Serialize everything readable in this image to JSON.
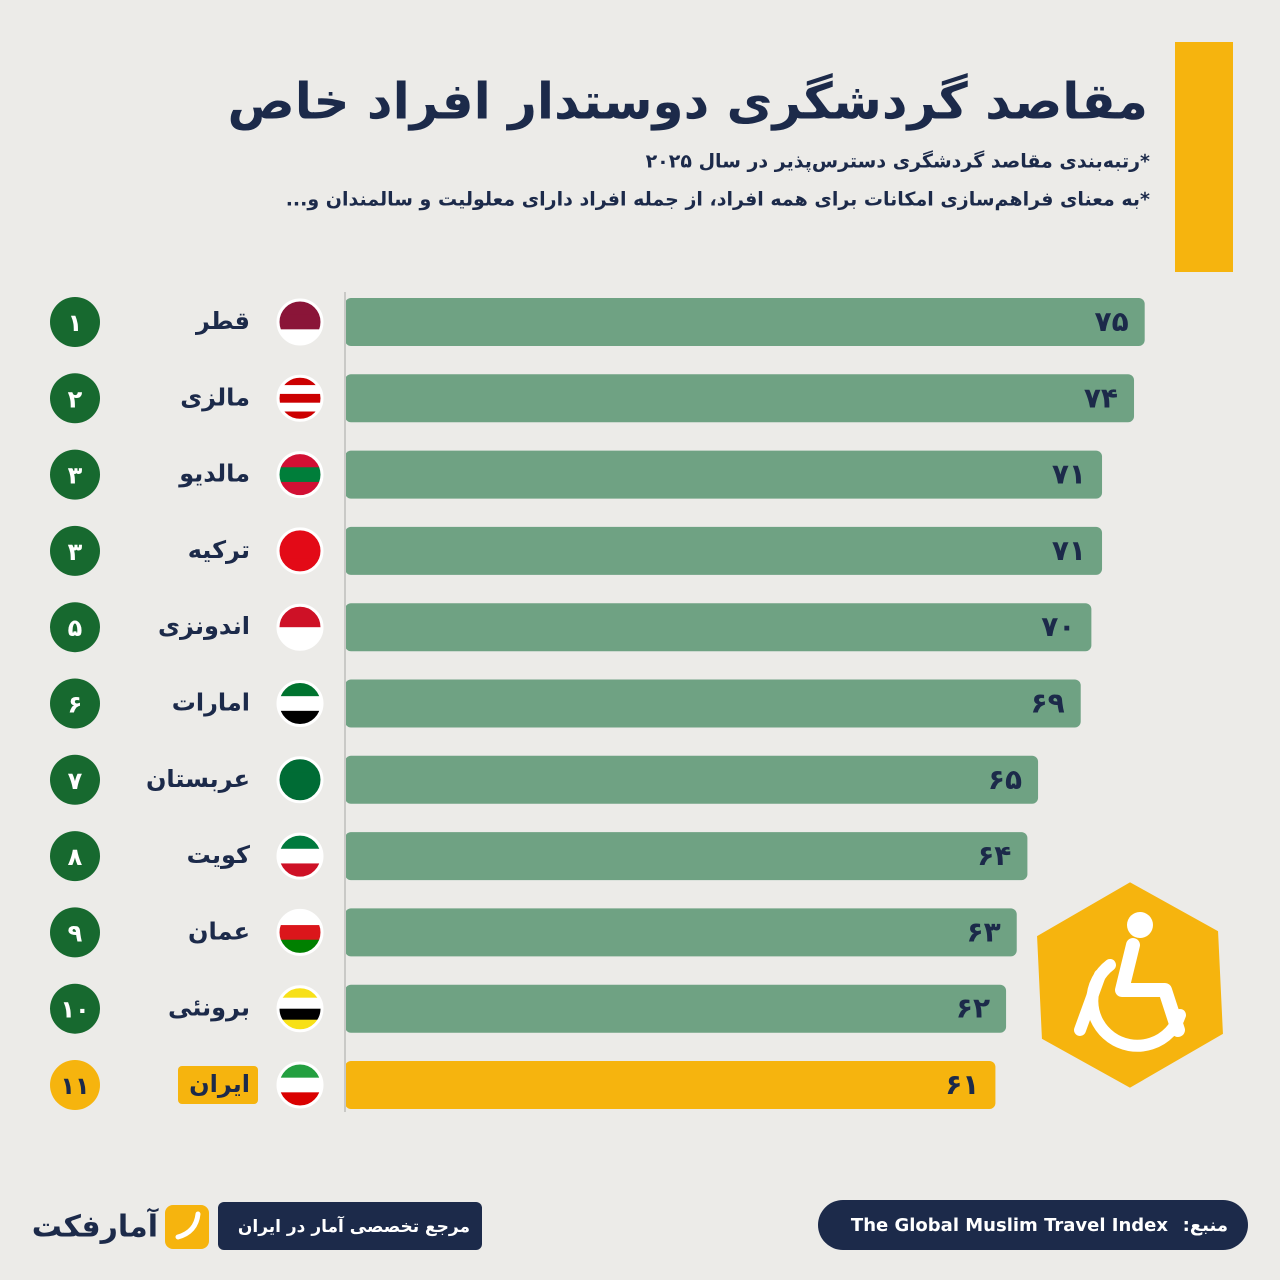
{
  "chart_data": {
    "type": "bar",
    "orientation": "horizontal",
    "title": "مقاصد گردشگری دوستدار افراد خاص",
    "subtitle": [
      "*رتبه‌بندی مقاصد گردشگری دسترس‌پذیر در سال ۲۰۲۵",
      "*به معنای فراهم‌سازی امکانات برای همه افراد، از جمله افراد دارای معلولیت و سالمندان و..."
    ],
    "ranks": [
      "۱",
      "۲",
      "۳",
      "۳",
      "۵",
      "۶",
      "۷",
      "۸",
      "۹",
      "۱۰",
      "۱۱"
    ],
    "categories": [
      "قطر",
      "مالزی",
      "مالدیو",
      "ترکیه",
      "اندونزی",
      "امارات",
      "عربستان",
      "کویت",
      "عمان",
      "برونئی",
      "ایران"
    ],
    "values": [
      75,
      74,
      71,
      71,
      70,
      69,
      65,
      64,
      63,
      62,
      61
    ],
    "value_labels": [
      "۷۵",
      "۷۴",
      "۷۱",
      "۷۱",
      "۷۰",
      "۶۹",
      "۶۵",
      "۶۴",
      "۶۳",
      "۶۲",
      "۶۱"
    ],
    "colors": [
      "#6fa283",
      "#6fa283",
      "#6fa283",
      "#6fa283",
      "#6fa283",
      "#6fa283",
      "#6fa283",
      "#6fa283",
      "#6fa283",
      "#6fa283",
      "#f6b40e"
    ],
    "rank_colors": [
      "#17692f",
      "#17692f",
      "#17692f",
      "#17692f",
      "#17692f",
      "#17692f",
      "#17692f",
      "#17692f",
      "#17692f",
      "#17692f",
      "#f6b40e"
    ],
    "xlim": [
      0,
      80
    ],
    "source_label": "منبع:",
    "source": "The Global Muslim Travel Index",
    "brand": "آمارفکت",
    "tagline": "مرجع تخصصی آمار در ایران"
  }
}
